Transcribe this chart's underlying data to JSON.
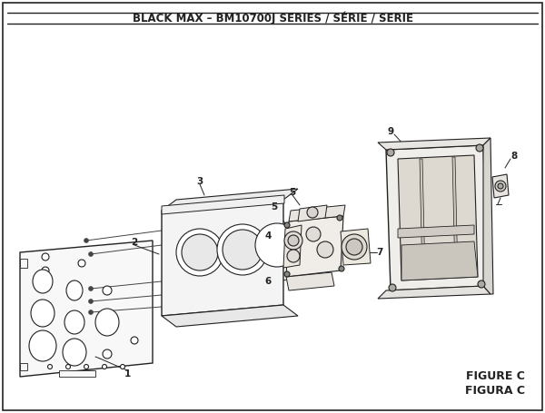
{
  "title": "BLACK MAX – BM10700J SERIES / SÉRIE / SERIE",
  "title_fontsize": 8.5,
  "bg_color": "#ffffff",
  "border_color": "#222222",
  "figure_label": "FIGURE C",
  "figure_label2": "FIGURA C"
}
